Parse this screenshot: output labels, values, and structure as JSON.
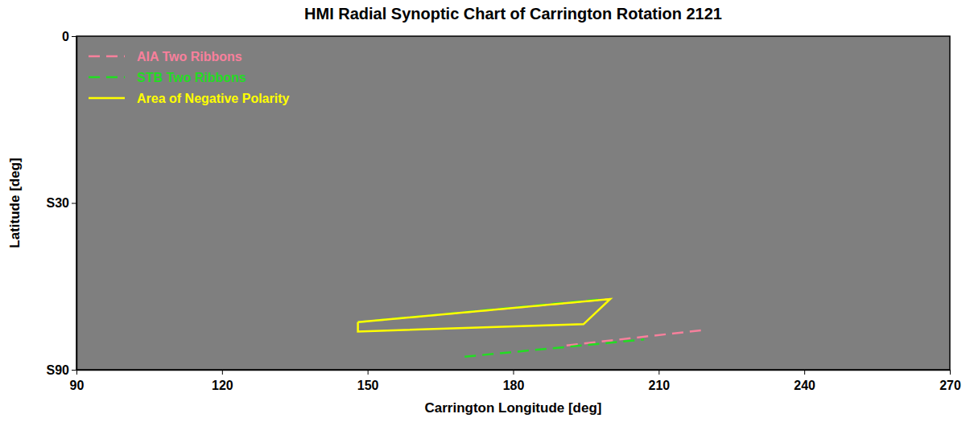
{
  "chart_data": {
    "type": "line",
    "title": "HMI Radial Synoptic Chart of Carrington Rotation 2121",
    "xlabel": "Carrington Longitude [deg]",
    "ylabel": "Latitude [deg]",
    "xlim": [
      90,
      270
    ],
    "xticks": [
      90,
      120,
      150,
      180,
      210,
      240,
      270
    ],
    "ylim": [
      0,
      -90
    ],
    "yticks": [
      0,
      {
        "value": -30,
        "label": "S30"
      },
      {
        "value": -90,
        "label": "S90"
      }
    ],
    "grid": false,
    "legend": "upper left",
    "series": [
      {
        "name": "AIA Two Ribbons",
        "color": "#f7809c",
        "line_style": "dashed",
        "x": [
          148,
          200,
          null,
          191,
          220
        ],
        "values": [
          -59,
          -52,
          null,
          -68,
          -61.6
        ]
      },
      {
        "name": "STB Two Ribbons",
        "color": "#22dd22",
        "line_style": "dashed",
        "x": [
          148,
          198.7,
          null,
          170,
          207
        ],
        "values": [
          -59,
          -52,
          null,
          -73.9,
          -65.4
        ]
      },
      {
        "name": "Area of Negative Polarity",
        "color": "#ffff00",
        "line_style": "solid",
        "x": [
          148,
          200,
          194.5,
          148,
          148
        ],
        "values": [
          -59,
          -52,
          -59.7,
          -62.3,
          -59
        ]
      }
    ]
  }
}
